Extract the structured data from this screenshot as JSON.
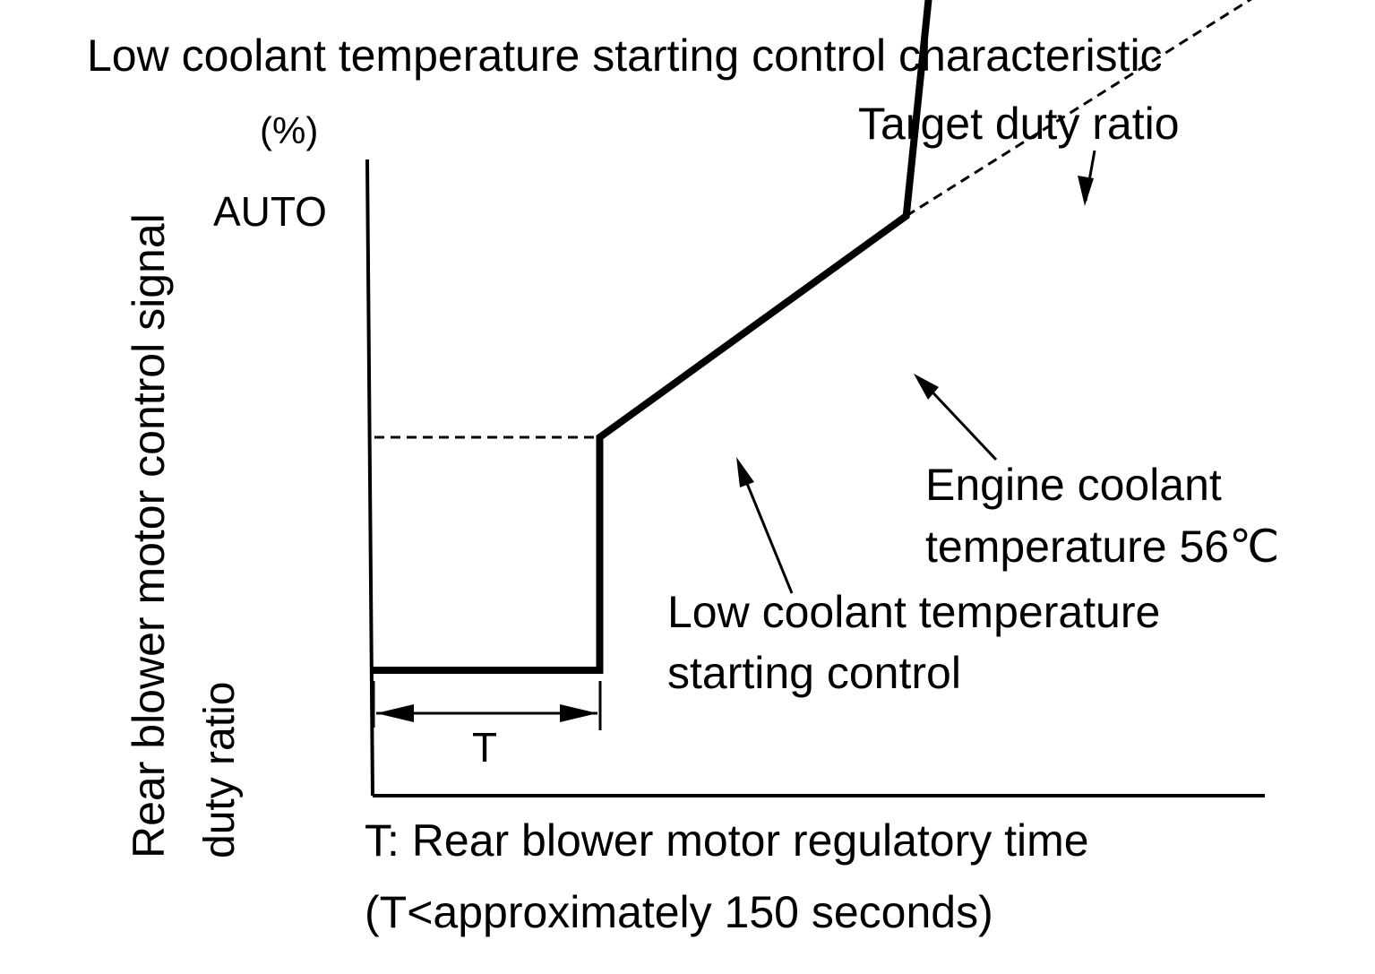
{
  "chart_data": {
    "type": "line",
    "title": "Low coolant temperature starting control characteristic",
    "ylabel": "Rear  blower motor control signal",
    "ylabel_line2": "duty ratio",
    "y_unit": "(%)",
    "y_tick_labels": [
      "AUTO"
    ],
    "x_note_line1": "T: Rear blower motor regulatory time",
    "x_note_line2": "(T<approximately 150 seconds)",
    "interval_label": "T",
    "series": [
      {
        "name": "Low coolant temperature starting control",
        "style": "solid",
        "points": [
          [
            0,
            1
          ],
          [
            1,
            1
          ],
          [
            1,
            3
          ],
          [
            2.35,
            4.9
          ],
          [
            2.45,
            6.8
          ],
          [
            3.9,
            6.8
          ]
        ]
      },
      {
        "name": "Target duty ratio",
        "style": "dashed",
        "points": [
          [
            2.35,
            4.9
          ],
          [
            3.9,
            6.8
          ]
        ]
      }
    ],
    "reference_lines": [
      {
        "label": "AUTO",
        "y": 6.8,
        "x_from": 0,
        "x_to": 2.45
      },
      {
        "label": "",
        "y": 3,
        "x_from": 0,
        "x_to": 1
      }
    ],
    "annotations": [
      {
        "text": "Target duty ratio"
      },
      {
        "text": "Engine coolant temperature 56℃",
        "line1": "Engine coolant",
        "line2": "temperature 56℃"
      },
      {
        "text": "Low coolant temperature starting control",
        "line1": "Low coolant temperature",
        "line2": "starting control"
      }
    ],
    "colors": {
      "line": "#000000",
      "background": "#ffffff"
    }
  }
}
